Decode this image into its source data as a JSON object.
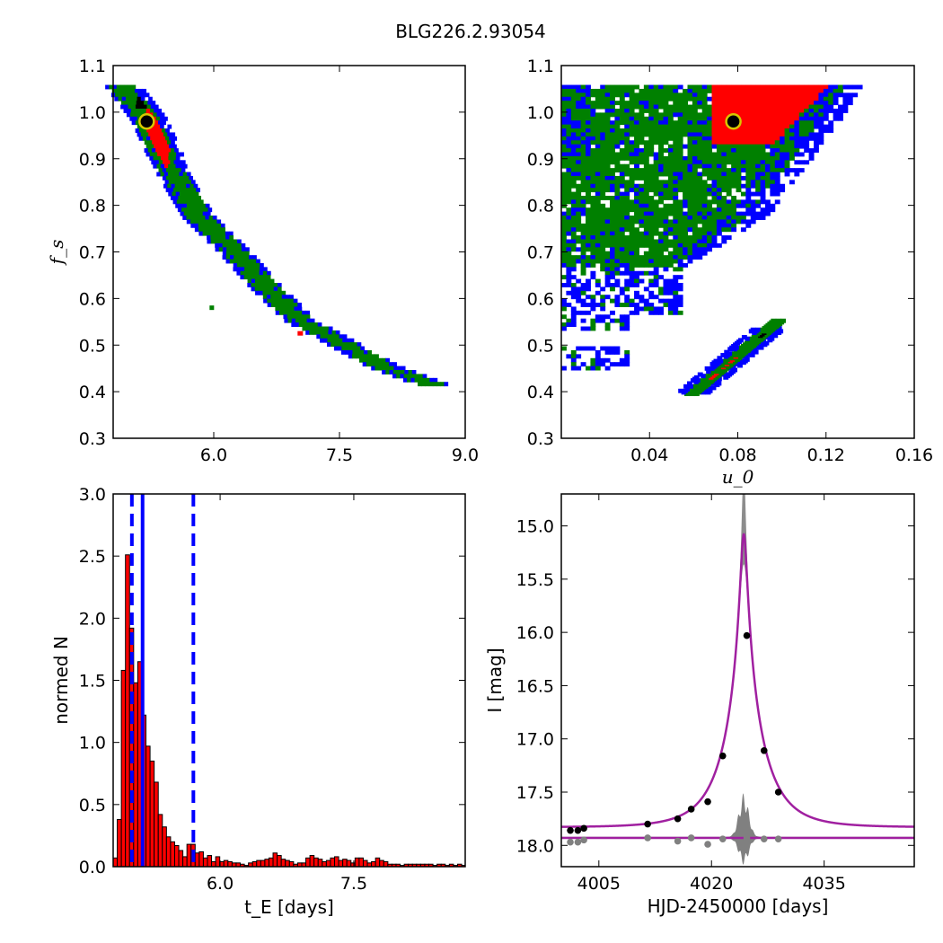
{
  "figure_title": "BLG226.2.93054",
  "chart_data": [
    {
      "id": "tE_fs",
      "type": "heatmap",
      "xlabel": "",
      "ylabel": "f_s",
      "xlim": [
        4.8,
        9.0
      ],
      "ylim": [
        0.3,
        1.1
      ],
      "x_ticks": [
        6.0,
        7.5,
        9.0
      ],
      "x_tick_labels": [
        "6.0",
        "7.5",
        "9.0"
      ],
      "y_ticks": [
        0.3,
        0.4,
        0.5,
        0.6,
        0.7,
        0.8,
        0.9,
        1.0,
        1.1
      ],
      "y_tick_labels": [
        "0.3",
        "0.4",
        "0.5",
        "0.6",
        "0.7",
        "0.8",
        "0.9",
        "1.0",
        "1.1"
      ],
      "colors": {
        "outer": "#0000ff",
        "middle": "#008000",
        "inner": "#ff0000",
        "core": "#000000"
      },
      "best_fit": {
        "x": 5.2,
        "y": 0.98
      },
      "band_centerline": [
        [
          4.9,
          1.05
        ],
        [
          5.2,
          0.98
        ],
        [
          5.5,
          0.86
        ],
        [
          5.8,
          0.77
        ],
        [
          6.2,
          0.7
        ],
        [
          6.6,
          0.62
        ],
        [
          7.0,
          0.55
        ],
        [
          7.5,
          0.5
        ],
        [
          8.0,
          0.45
        ],
        [
          8.6,
          0.41
        ]
      ],
      "red_region": [
        [
          5.2,
          1.02
        ],
        [
          5.35,
          0.92
        ]
      ]
    },
    {
      "id": "u0_fs",
      "type": "heatmap",
      "xlabel": "u_0",
      "ylabel": "",
      "xlim": [
        0.0,
        0.16
      ],
      "ylim": [
        0.3,
        1.1
      ],
      "x_ticks": [
        0.04,
        0.08,
        0.12,
        0.16
      ],
      "x_tick_labels": [
        "0.04",
        "0.08",
        "0.12",
        "0.16"
      ],
      "y_ticks": [
        0.3,
        0.4,
        0.5,
        0.6,
        0.7,
        0.8,
        0.9,
        1.0,
        1.1
      ],
      "y_tick_labels": [
        "0.3",
        "0.4",
        "0.5",
        "0.6",
        "0.7",
        "0.8",
        "0.9",
        "1.0",
        "1.1"
      ],
      "colors": {
        "outer": "#0000ff",
        "middle": "#008000",
        "inner": "#ff0000",
        "core": "#000000"
      },
      "best_fit": {
        "x": 0.078,
        "y": 0.98
      }
    },
    {
      "id": "tE_hist",
      "type": "bar",
      "xlabel": "t_E  [days]",
      "ylabel": "normed N",
      "xlim": [
        4.8,
        8.75
      ],
      "ylim": [
        0.0,
        3.0
      ],
      "x_ticks": [
        6.0,
        7.5
      ],
      "x_tick_labels": [
        "6.0",
        "7.5"
      ],
      "y_ticks": [
        0.0,
        0.5,
        1.0,
        1.5,
        2.0,
        2.5,
        3.0
      ],
      "y_tick_labels": [
        "0.0",
        "0.5",
        "1.0",
        "1.5",
        "2.0",
        "2.5",
        "3.0"
      ],
      "bin_start": 4.8,
      "bin_width": 0.046,
      "values": [
        0.07,
        0.38,
        1.58,
        2.51,
        1.92,
        1.48,
        1.65,
        1.22,
        0.97,
        0.85,
        0.68,
        0.42,
        0.32,
        0.24,
        0.2,
        0.17,
        0.13,
        0.08,
        0.18,
        0.18,
        0.11,
        0.12,
        0.07,
        0.09,
        0.04,
        0.08,
        0.04,
        0.05,
        0.04,
        0.03,
        0.03,
        0.02,
        0.01,
        0.03,
        0.04,
        0.05,
        0.05,
        0.06,
        0.07,
        0.11,
        0.09,
        0.06,
        0.05,
        0.04,
        0.02,
        0.03,
        0.03,
        0.07,
        0.09,
        0.07,
        0.06,
        0.04,
        0.05,
        0.07,
        0.08,
        0.05,
        0.06,
        0.05,
        0.03,
        0.07,
        0.07,
        0.05,
        0.03,
        0.04,
        0.07,
        0.05,
        0.04,
        0.02,
        0.02,
        0.02,
        0.01,
        0.02,
        0.02,
        0.02,
        0.02,
        0.02,
        0.02,
        0.02,
        0.01,
        0.02,
        0.02,
        0.01,
        0.02,
        0.01,
        0.02,
        0.01
      ],
      "bar_color": "#ff0000",
      "vlines": [
        {
          "x": 5.01,
          "style": "dashed",
          "color": "#0000ff"
        },
        {
          "x": 5.13,
          "style": "solid",
          "color": "#0000ff"
        },
        {
          "x": 5.7,
          "style": "dashed",
          "color": "#0000ff"
        }
      ]
    },
    {
      "id": "light_curve",
      "type": "scatter",
      "xlabel": "HJD-2450000 [days]",
      "ylabel": "I [mag]",
      "xlim": [
        4000,
        4047
      ],
      "ylim": [
        18.2,
        14.7
      ],
      "y_inverted": true,
      "x_ticks": [
        4005,
        4020,
        4035
      ],
      "x_tick_labels": [
        "4005",
        "4020",
        "4035"
      ],
      "y_ticks": [
        15.0,
        15.5,
        16.0,
        16.5,
        17.0,
        17.5,
        18.0
      ],
      "y_tick_labels": [
        "15.0",
        "15.5",
        "16.0",
        "16.5",
        "17.0",
        "17.5",
        "18.0"
      ],
      "model": {
        "t0": 4024.3,
        "tE": 5.2,
        "u0": 0.078,
        "baseline_mag": 17.83,
        "fs": 0.98,
        "color": "#a020a0"
      },
      "residual_baseline": 17.93,
      "data_points": [
        {
          "x": 4001.2,
          "y": 17.86
        },
        {
          "x": 4002.2,
          "y": 17.86
        },
        {
          "x": 4003.0,
          "y": 17.84
        },
        {
          "x": 4011.5,
          "y": 17.8
        },
        {
          "x": 4015.5,
          "y": 17.75
        },
        {
          "x": 4017.3,
          "y": 17.66
        },
        {
          "x": 4019.5,
          "y": 17.59
        },
        {
          "x": 4021.5,
          "y": 17.16
        },
        {
          "x": 4024.7,
          "y": 16.03
        },
        {
          "x": 4027.0,
          "y": 17.11
        },
        {
          "x": 4028.9,
          "y": 17.5
        }
      ],
      "residual_points": [
        {
          "x": 4001.2,
          "y": 17.97
        },
        {
          "x": 4002.2,
          "y": 17.97
        },
        {
          "x": 4003.0,
          "y": 17.95
        },
        {
          "x": 4011.5,
          "y": 17.93
        },
        {
          "x": 4015.5,
          "y": 17.96
        },
        {
          "x": 4017.3,
          "y": 17.93
        },
        {
          "x": 4019.5,
          "y": 17.99
        },
        {
          "x": 4021.5,
          "y": 17.94
        },
        {
          "x": 4024.7,
          "y": 17.93
        },
        {
          "x": 4027.0,
          "y": 17.94
        },
        {
          "x": 4028.9,
          "y": 17.94
        }
      ],
      "point_color": "#000000",
      "residual_color": "#808080",
      "band_color": "#808080"
    }
  ]
}
